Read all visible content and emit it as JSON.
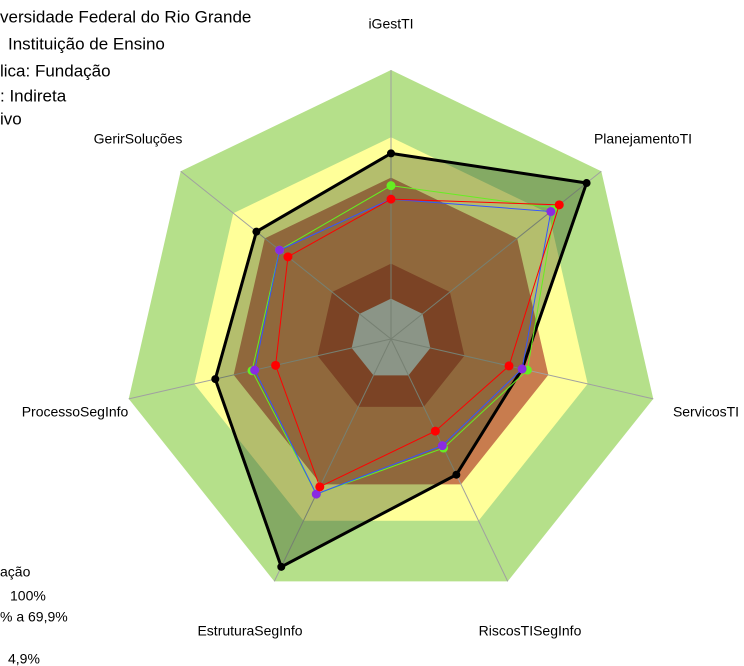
{
  "chart_data": {
    "type": "radar",
    "info_lines": [
      "versidade Federal do Rio Grande",
      "Instituição de Ensino",
      "lica: Fundação",
      ": Indireta",
      "ivo"
    ],
    "legend_lines": [
      "ação",
      "100%",
      "% a 69,9%",
      "4,9%"
    ],
    "categories": [
      "iGestTI",
      "PlanejamentoTI",
      "ServicosTI",
      "RiscosTISegInfo",
      "EstruturaSegInfo",
      "ProcessoSegInfo",
      "GerirSoluções"
    ],
    "ylim": [
      0,
      100
    ],
    "bands": [
      100,
      75,
      60,
      28,
      15
    ],
    "band_colors": [
      "#b5e08a",
      "#ffff99",
      "#c87c4e",
      "#a8432a",
      "#c0c0c0"
    ],
    "series": [
      {
        "color": "#000000",
        "values": [
          69,
          93,
          50,
          56,
          94,
          67,
          64
        ]
      },
      {
        "color": "#66ee22",
        "values": [
          57,
          78,
          52,
          45,
          64,
          53,
          53
        ]
      },
      {
        "color": "#3355ff",
        "values": [
          52,
          76,
          50,
          44,
          64,
          52,
          53
        ]
      },
      {
        "color": "#ff0000",
        "values": [
          52,
          80,
          45,
          38,
          61,
          44,
          49
        ]
      }
    ]
  }
}
